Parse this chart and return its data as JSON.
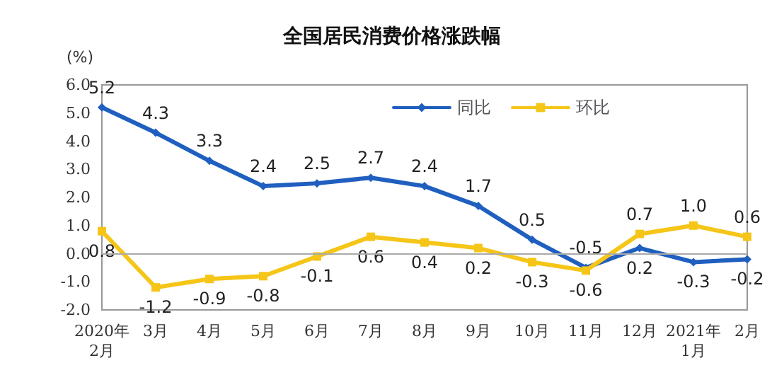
{
  "chart_data": {
    "type": "line",
    "title": "全国居民消费价格涨跌幅",
    "ylabel": "(%)",
    "categories": [
      "2020年\n2月",
      "3月",
      "4月",
      "5月",
      "6月",
      "7月",
      "8月",
      "9月",
      "10月",
      "11月",
      "12月",
      "2021年\n1月",
      "2月"
    ],
    "series": [
      {
        "name": "同比",
        "color": "#1f5fbf",
        "marker": "diamond",
        "values": [
          5.2,
          4.3,
          3.3,
          2.4,
          2.5,
          2.7,
          2.4,
          1.7,
          0.5,
          -0.5,
          0.2,
          -0.3,
          -0.2
        ],
        "value_labels": [
          "5.2",
          "4.3",
          "3.3",
          "2.4",
          "2.5",
          "2.7",
          "2.4",
          "1.7",
          "0.5",
          "-0.5",
          "0.2",
          "-0.3",
          "-0.2"
        ]
      },
      {
        "name": "环比",
        "color": "#f5c518",
        "marker": "square",
        "values": [
          0.8,
          -1.2,
          -0.9,
          -0.8,
          -0.1,
          0.6,
          0.4,
          0.2,
          -0.3,
          -0.6,
          0.7,
          1.0,
          0.6
        ],
        "value_labels": [
          "0.8",
          "-1.2",
          "-0.9",
          "-0.8",
          "-0.1",
          "0.6",
          "0.4",
          "0.2",
          "-0.3",
          "-0.6",
          "0.7",
          "1.0",
          "0.6"
        ]
      }
    ],
    "ylim": [
      -2,
      6
    ],
    "yticks": [
      {
        "value": -2,
        "label": "-2.0"
      },
      {
        "value": -1,
        "label": "-1.0"
      },
      {
        "value": 0,
        "label": "0.0"
      },
      {
        "value": 1,
        "label": "1.0"
      },
      {
        "value": 2,
        "label": "2.0"
      },
      {
        "value": 3,
        "label": "3.0"
      },
      {
        "value": 4,
        "label": "4.0"
      },
      {
        "value": 5,
        "label": "5.0"
      },
      {
        "value": 6,
        "label": "6.0"
      }
    ],
    "ref_lines": [
      {
        "axis": "y",
        "value": 0,
        "color": "#aaaaaa"
      }
    ],
    "legend": "top right",
    "line_style": "solid"
  }
}
